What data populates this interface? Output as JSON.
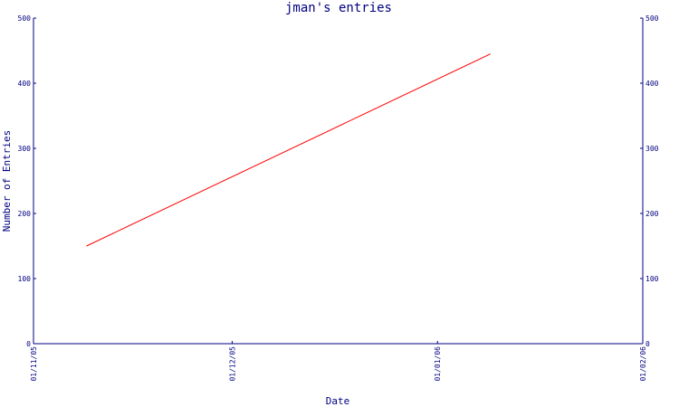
{
  "chart_data": {
    "type": "line",
    "title": "jman's entries",
    "xlabel": "Date",
    "ylabel": "Number of Entries",
    "ylim": [
      0,
      500
    ],
    "yticks": [
      0,
      100,
      200,
      300,
      400,
      500
    ],
    "xlim": [
      "2005-11-01",
      "2006-02-01"
    ],
    "xticks": [
      "2005-11-01",
      "2005-12-01",
      "2006-01-01",
      "2006-02-01"
    ],
    "xtick_labels": [
      "01/11/05",
      "01/12/05",
      "01/01/06",
      "01/02/06"
    ],
    "grid": false,
    "legend": "none",
    "series": [
      {
        "color": "#ff0000",
        "points": [
          {
            "x": "2005-11-09",
            "y": 150
          },
          {
            "x": "2006-01-09",
            "y": 445
          }
        ]
      }
    ]
  }
}
